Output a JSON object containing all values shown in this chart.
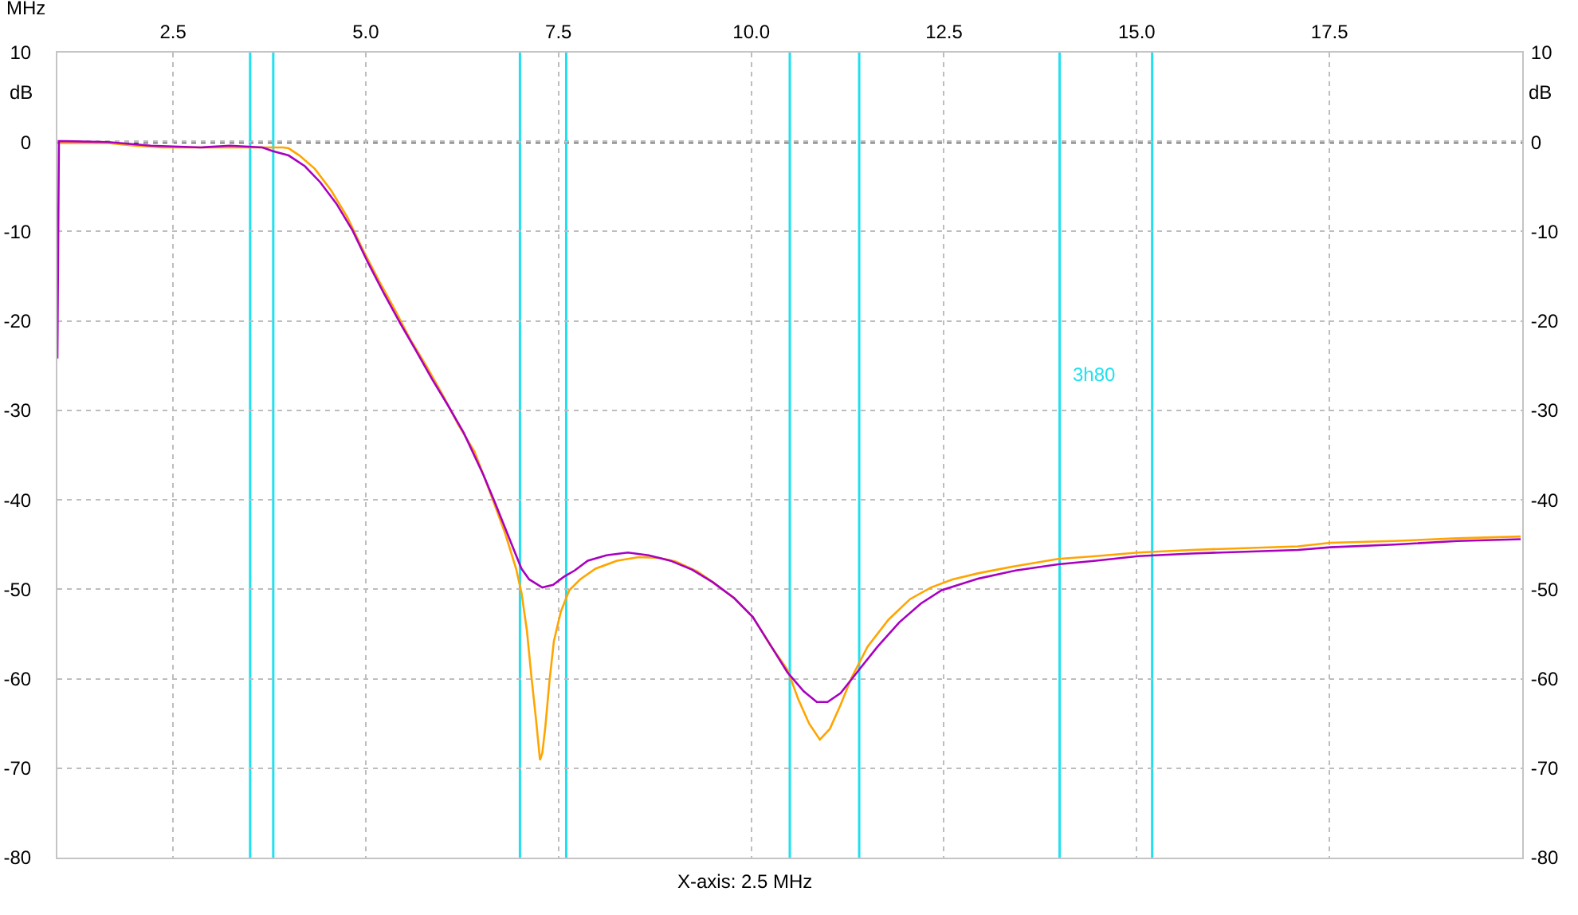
{
  "chart_data": {
    "type": "line",
    "xlabel": "MHz",
    "ylabel": "dB",
    "y2label": "dB",
    "xlim": [
      1,
      20
    ],
    "xticks": [
      2.5,
      {
        "value": 5,
        "label": "5.0"
      },
      7.5,
      {
        "value": 10,
        "label": "10.0"
      },
      12.5,
      {
        "value": 15,
        "label": "15.0"
      },
      17.5
    ],
    "ylim": [
      -80,
      10
    ],
    "yticks": [
      10,
      0,
      -10,
      -20,
      -30,
      -40,
      -50,
      -60,
      -70,
      -80
    ],
    "y2lim": [
      -80,
      10
    ],
    "y2ticks": [
      10,
      0,
      -10,
      -20,
      -30,
      -40,
      -50,
      -60,
      -70,
      -80
    ],
    "grid": true,
    "marker": "none",
    "line_style": "solid",
    "series": [
      {
        "color": "#ffa500",
        "x": [
          1.03,
          1.66,
          2.0,
          2.36,
          3.61,
          3.93,
          4.0,
          4.14,
          4.34,
          4.55,
          4.76,
          4.96,
          5.17,
          5.38,
          5.58,
          5.79,
          6.0,
          6.2,
          6.41,
          6.53,
          6.67,
          6.81,
          6.95,
          7.02,
          7.09,
          7.15,
          7.21,
          7.26,
          7.29,
          7.33,
          7.38,
          7.44,
          7.53,
          7.64,
          7.78,
          7.98,
          8.26,
          8.54,
          8.81,
          9.02,
          9.3,
          9.5,
          9.78,
          10.02,
          10.26,
          10.47,
          10.61,
          10.75,
          10.89,
          11.02,
          11.16,
          11.3,
          11.51,
          11.78,
          12.06,
          12.33,
          12.61,
          12.95,
          13.43,
          13.98,
          14.47,
          15.02,
          15.71,
          16.4,
          17.09,
          17.51,
          18.34,
          19.16,
          19.98
        ],
        "values": [
          -0.1,
          -0.1,
          -0.4,
          -0.6,
          -0.6,
          -0.6,
          -0.7,
          -1.5,
          -3.0,
          -5.4,
          -8.4,
          -12.0,
          -15.5,
          -18.8,
          -22.1,
          -25.1,
          -28.3,
          -31.6,
          -34.6,
          -37.3,
          -40.5,
          -43.8,
          -47.7,
          -50.4,
          -54.6,
          -59.9,
          -64.7,
          -69.1,
          -68.3,
          -65.3,
          -60.5,
          -55.8,
          -52.5,
          -50.1,
          -48.9,
          -47.7,
          -46.8,
          -46.4,
          -46.5,
          -46.9,
          -48.0,
          -49.2,
          -51.0,
          -53.1,
          -56.4,
          -59.0,
          -62.3,
          -65.0,
          -66.8,
          -65.6,
          -62.9,
          -59.9,
          -56.4,
          -53.4,
          -51.1,
          -49.8,
          -48.9,
          -48.2,
          -47.4,
          -46.6,
          -46.3,
          -45.9,
          -45.6,
          -45.4,
          -45.2,
          -44.8,
          -44.6,
          -44.3,
          -44.1
        ]
      },
      {
        "color": "#a800c0",
        "x": [
          1.0,
          1.01,
          1.02,
          1.11,
          1.66,
          2.21,
          2.86,
          3.24,
          3.66,
          3.79,
          4.0,
          4.21,
          4.41,
          4.62,
          4.83,
          5.03,
          5.24,
          5.45,
          5.65,
          5.86,
          6.07,
          6.27,
          6.53,
          6.67,
          6.81,
          6.95,
          7.02,
          7.12,
          7.29,
          7.43,
          7.57,
          7.71,
          7.88,
          8.12,
          8.4,
          8.67,
          8.95,
          9.23,
          9.5,
          9.78,
          10.02,
          10.26,
          10.47,
          10.68,
          10.85,
          10.99,
          11.16,
          11.37,
          11.64,
          11.92,
          12.2,
          12.47,
          12.95,
          13.43,
          13.98,
          14.47,
          15.02,
          15.71,
          16.4,
          17.09,
          17.51,
          18.34,
          19.16,
          19.98
        ],
        "values": [
          -24.2,
          -12.0,
          0.1,
          0.1,
          0.0,
          -0.4,
          -0.6,
          -0.4,
          -0.6,
          -1.0,
          -1.5,
          -2.7,
          -4.5,
          -6.9,
          -9.9,
          -13.5,
          -17.0,
          -20.3,
          -23.3,
          -26.5,
          -29.5,
          -32.5,
          -37.3,
          -40.2,
          -43.2,
          -46.2,
          -47.7,
          -48.9,
          -49.8,
          -49.5,
          -48.6,
          -47.9,
          -46.8,
          -46.2,
          -45.9,
          -46.2,
          -46.8,
          -47.8,
          -49.2,
          -51.0,
          -53.1,
          -56.4,
          -59.3,
          -61.4,
          -62.6,
          -62.6,
          -61.6,
          -59.3,
          -56.4,
          -53.7,
          -51.6,
          -50.1,
          -48.8,
          -47.9,
          -47.2,
          -46.8,
          -46.3,
          -46.0,
          -45.8,
          -45.6,
          -45.3,
          -45.0,
          -44.6,
          -44.4
        ]
      }
    ],
    "ref_lines": [
      {
        "axis": "y",
        "value": 0,
        "color": "#000000",
        "line_style": "dotted"
      },
      {
        "axis": "x",
        "value": 3.5,
        "color": "#20e0f0"
      },
      {
        "axis": "x",
        "value": 3.8,
        "color": "#20e0f0"
      },
      {
        "axis": "x",
        "value": 7.0,
        "color": "#20e0f0"
      },
      {
        "axis": "x",
        "value": 7.6,
        "color": "#20e0f0"
      },
      {
        "axis": "x",
        "value": 10.5,
        "color": "#20e0f0"
      },
      {
        "axis": "x",
        "value": 11.4,
        "color": "#20e0f0"
      },
      {
        "axis": "x",
        "value": 14.0,
        "color": "#20e0f0",
        "label": "3h80"
      },
      {
        "axis": "x",
        "value": 15.2,
        "color": "#20e0f0"
      }
    ],
    "annotations": [
      "X-axis: 2.5 MHz"
    ]
  }
}
